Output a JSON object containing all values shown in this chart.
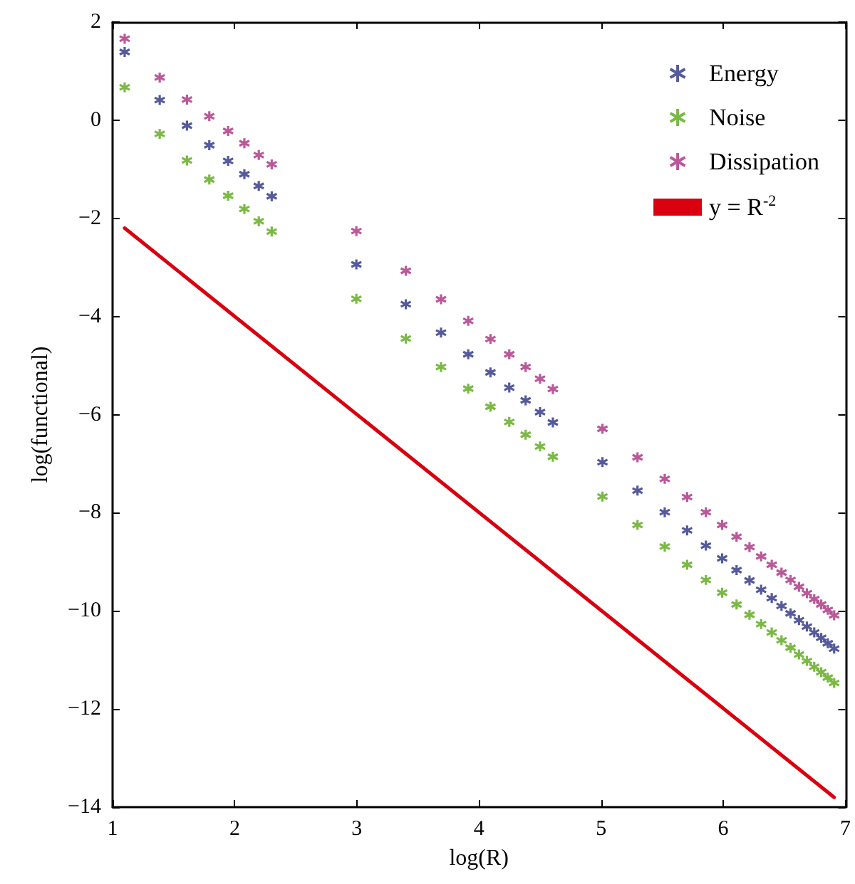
{
  "chart_data": {
    "type": "scatter",
    "xlabel": "log(R)",
    "ylabel": "log(functional)",
    "x": [
      1.099,
      1.386,
      1.609,
      1.792,
      1.946,
      2.079,
      2.197,
      2.303,
      2.996,
      3.401,
      3.689,
      3.912,
      4.094,
      4.248,
      4.382,
      4.5,
      4.605,
      5.011,
      5.298,
      5.521,
      5.704,
      5.858,
      5.991,
      6.109,
      6.215,
      6.31,
      6.397,
      6.477,
      6.551,
      6.62,
      6.685,
      6.745,
      6.802,
      6.856,
      6.908
    ],
    "series": [
      {
        "name": "Energy",
        "color": "#2b3183",
        "values": [
          1.39,
          0.41,
          -0.11,
          -0.51,
          -0.83,
          -1.1,
          -1.34,
          -1.55,
          -2.94,
          -3.75,
          -4.33,
          -4.77,
          -5.14,
          -5.45,
          -5.71,
          -5.95,
          -6.16,
          -6.97,
          -7.55,
          -7.99,
          -8.36,
          -8.67,
          -8.93,
          -9.17,
          -9.38,
          -9.57,
          -9.74,
          -9.9,
          -10.05,
          -10.19,
          -10.32,
          -10.44,
          -10.55,
          -10.66,
          -10.77
        ]
      },
      {
        "name": "Noise",
        "color": "#5aa817",
        "values": [
          0.67,
          -0.28,
          -0.82,
          -1.21,
          -1.54,
          -1.81,
          -2.06,
          -2.27,
          -3.64,
          -4.45,
          -5.03,
          -5.47,
          -5.84,
          -6.15,
          -6.41,
          -6.65,
          -6.86,
          -7.67,
          -8.25,
          -8.69,
          -9.06,
          -9.37,
          -9.63,
          -9.87,
          -10.08,
          -10.27,
          -10.44,
          -10.6,
          -10.75,
          -10.89,
          -11.02,
          -11.14,
          -11.25,
          -11.36,
          -11.47
        ]
      },
      {
        "name": "Dissipation",
        "color": "#a8307f",
        "values": [
          1.66,
          0.87,
          0.42,
          0.08,
          -0.22,
          -0.47,
          -0.71,
          -0.9,
          -2.26,
          -3.07,
          -3.65,
          -4.09,
          -4.46,
          -4.77,
          -5.03,
          -5.27,
          -5.48,
          -6.29,
          -6.87,
          -7.31,
          -7.68,
          -7.99,
          -8.25,
          -8.49,
          -8.7,
          -8.89,
          -9.06,
          -9.22,
          -9.37,
          -9.51,
          -9.64,
          -9.76,
          -9.87,
          -9.98,
          -10.09
        ]
      },
      {
        "name": "y = R$^{-2}$",
        "type": "line",
        "color": "#d9000f",
        "x": [
          1.099,
          6.908
        ],
        "values": [
          -2.2,
          -13.8
        ],
        "line_style": "solid",
        "marker": "none"
      }
    ],
    "xlim": [
      1,
      7
    ],
    "xticks": [
      1,
      2,
      3,
      4,
      5,
      6,
      7
    ],
    "ylim": [
      -14,
      2
    ],
    "yticks": [
      -14,
      -12,
      -10,
      -8,
      -6,
      -4,
      -2,
      0,
      2
    ],
    "grid": false,
    "legend": "top right",
    "marker": "cross"
  }
}
